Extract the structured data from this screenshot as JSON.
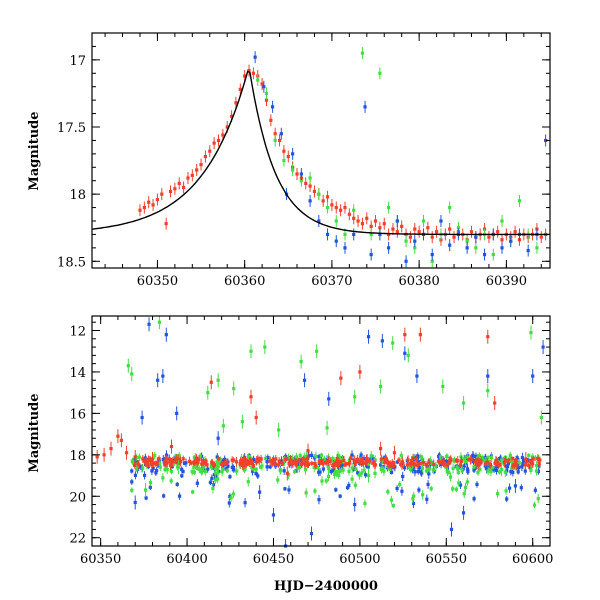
{
  "colors": {
    "red": "#f0402c",
    "green": "#44dd44",
    "blue": "#2255dd",
    "model": "#000000"
  },
  "chart_data": [
    {
      "type": "scatter",
      "title": "",
      "xlabel": "",
      "ylabel": "Magnitude",
      "xlim": [
        60342.5,
        60395
      ],
      "ylim": [
        18.55,
        16.8
      ],
      "y_inverted": true,
      "xticks": [
        60350,
        60360,
        60370,
        60380,
        60390
      ],
      "yticks": [
        17,
        17.5,
        18,
        18.5
      ],
      "xtick_labels": [
        "60350",
        "60360",
        "60370",
        "60380",
        "60390"
      ],
      "ytick_labels": [
        "17",
        "17.5",
        "18",
        "18.5"
      ],
      "model_curve": {
        "peak_x": 60360.5,
        "peak_y": 17.05,
        "baseline": 18.3,
        "rise_tau": 5.2,
        "decay_tau": 3.0
      },
      "series": [
        {
          "color": "red",
          "points": [
            [
              60348,
              18.12
            ],
            [
              60348.5,
              18.1
            ],
            [
              60349,
              18.06
            ],
            [
              60349.5,
              18.08
            ],
            [
              60350,
              18.04
            ],
            [
              60350.5,
              18.0
            ],
            [
              60351,
              18.22
            ],
            [
              60351.5,
              17.98
            ],
            [
              60352,
              17.96
            ],
            [
              60352.5,
              17.92
            ],
            [
              60353,
              17.95
            ],
            [
              60353.5,
              17.88
            ],
            [
              60354,
              17.86
            ],
            [
              60354.5,
              17.82
            ],
            [
              60355,
              17.78
            ],
            [
              60355.5,
              17.72
            ],
            [
              60356,
              17.68
            ],
            [
              60356.5,
              17.62
            ],
            [
              60357,
              17.6
            ],
            [
              60357.5,
              17.56
            ],
            [
              60358,
              17.5
            ],
            [
              60358.5,
              17.42
            ],
            [
              60359,
              17.32
            ],
            [
              60359.5,
              17.22
            ],
            [
              60360,
              17.12
            ],
            [
              60360.5,
              17.08
            ],
            [
              60361,
              17.1
            ],
            [
              60361.5,
              17.12
            ],
            [
              60362,
              17.18
            ],
            [
              60362.5,
              17.3
            ],
            [
              60363,
              17.45
            ],
            [
              60363.5,
              17.55
            ],
            [
              60364,
              17.6
            ],
            [
              60364.5,
              17.68
            ],
            [
              60365,
              17.72
            ],
            [
              60365.5,
              17.8
            ],
            [
              60366,
              17.85
            ],
            [
              60366.5,
              17.88
            ],
            [
              60367,
              17.92
            ],
            [
              60367.5,
              17.94
            ],
            [
              60368,
              17.98
            ],
            [
              60368.5,
              18.0
            ],
            [
              60369,
              18.05
            ],
            [
              60369.5,
              18.02
            ],
            [
              60370,
              18.08
            ],
            [
              60370.5,
              18.1
            ],
            [
              60371,
              18.12
            ],
            [
              60371.5,
              18.1
            ],
            [
              60372,
              18.15
            ],
            [
              60372.5,
              18.18
            ],
            [
              60373,
              18.2
            ],
            [
              60373.5,
              18.22
            ],
            [
              60374,
              18.18
            ],
            [
              60374.5,
              18.24
            ],
            [
              60375,
              18.2
            ],
            [
              60375.5,
              18.25
            ],
            [
              60376,
              18.22
            ],
            [
              60376.5,
              18.3
            ],
            [
              60377,
              18.26
            ],
            [
              60377.5,
              18.28
            ],
            [
              60378,
              18.24
            ],
            [
              60378.5,
              18.3
            ],
            [
              60379,
              18.32
            ],
            [
              60379.5,
              18.26
            ],
            [
              60380,
              18.28
            ],
            [
              60380.5,
              18.3
            ],
            [
              60381,
              18.25
            ],
            [
              60381.5,
              18.32
            ],
            [
              60382,
              18.28
            ],
            [
              60382.5,
              18.34
            ],
            [
              60383,
              18.3
            ],
            [
              60383.5,
              18.26
            ],
            [
              60384,
              18.32
            ],
            [
              60384.5,
              18.28
            ],
            [
              60385,
              18.3
            ],
            [
              60385.5,
              18.34
            ],
            [
              60386,
              18.28
            ],
            [
              60386.5,
              18.32
            ],
            [
              60387,
              18.3
            ],
            [
              60387.5,
              18.26
            ],
            [
              60388,
              18.32
            ],
            [
              60388.5,
              18.3
            ],
            [
              60389,
              18.28
            ],
            [
              60389.5,
              18.34
            ],
            [
              60390,
              18.3
            ],
            [
              60390.5,
              18.32
            ],
            [
              60391,
              18.28
            ],
            [
              60391.5,
              18.34
            ],
            [
              60392,
              18.3
            ],
            [
              60392.5,
              18.32
            ],
            [
              60393,
              18.3
            ],
            [
              60393.5,
              18.26
            ],
            [
              60394,
              18.32
            ],
            [
              60394.5,
              18.3
            ]
          ]
        },
        {
          "color": "green",
          "points": [
            [
              60361.5,
              17.15
            ],
            [
              60362.5,
              17.25
            ],
            [
              60363.5,
              17.6
            ],
            [
              60364.5,
              17.75
            ],
            [
              60365.5,
              17.82
            ],
            [
              60366.5,
              17.9
            ],
            [
              60367.5,
              17.88
            ],
            [
              60368.5,
              18.0
            ],
            [
              60369.5,
              18.1
            ],
            [
              60370.5,
              18.2
            ],
            [
              60371.5,
              18.3
            ],
            [
              60372.5,
              18.12
            ],
            [
              60373.5,
              16.95
            ],
            [
              60374.5,
              18.3
            ],
            [
              60375.5,
              17.1
            ],
            [
              60376.5,
              18.1
            ],
            [
              60377.5,
              18.2
            ],
            [
              60378.5,
              18.35
            ],
            [
              60379.5,
              18.4
            ],
            [
              60380.5,
              18.2
            ],
            [
              60381.5,
              18.5
            ],
            [
              60382.5,
              18.3
            ],
            [
              60383.5,
              18.1
            ],
            [
              60384.5,
              18.25
            ],
            [
              60385.5,
              18.35
            ],
            [
              60386.5,
              18.4
            ],
            [
              60387.5,
              18.3
            ],
            [
              60388.5,
              18.45
            ],
            [
              60389.5,
              18.2
            ],
            [
              60390.5,
              18.35
            ],
            [
              60391.5,
              18.05
            ],
            [
              60392.5,
              18.3
            ],
            [
              60393.5,
              18.4
            ]
          ]
        },
        {
          "color": "blue",
          "points": [
            [
              60361.2,
              16.98
            ],
            [
              60362.2,
              17.2
            ],
            [
              60363.2,
              17.35
            ],
            [
              60364.2,
              17.55
            ],
            [
              60364.8,
              18.0
            ],
            [
              60365.5,
              17.7
            ],
            [
              60366.5,
              17.85
            ],
            [
              60367.5,
              18.05
            ],
            [
              60368.5,
              18.2
            ],
            [
              60369.5,
              18.3
            ],
            [
              60370.5,
              18.35
            ],
            [
              60371.5,
              18.4
            ],
            [
              60372.5,
              18.3
            ],
            [
              60373.8,
              17.35
            ],
            [
              60374.5,
              18.45
            ],
            [
              60375.5,
              18.3
            ],
            [
              60376.5,
              18.4
            ],
            [
              60377.5,
              18.2
            ],
            [
              60378.5,
              18.5
            ],
            [
              60379.5,
              18.35
            ],
            [
              60380.5,
              18.3
            ],
            [
              60381.5,
              18.45
            ],
            [
              60382.5,
              18.2
            ],
            [
              60383.5,
              18.38
            ],
            [
              60384.5,
              18.3
            ],
            [
              60385.5,
              18.4
            ],
            [
              60386.5,
              18.32
            ],
            [
              60387.5,
              18.45
            ],
            [
              60388.5,
              18.3
            ],
            [
              60389.5,
              18.4
            ],
            [
              60390.5,
              18.35
            ],
            [
              60391.5,
              18.3
            ],
            [
              60392.5,
              18.42
            ],
            [
              60393.5,
              18.3
            ],
            [
              60394.5,
              17.6
            ]
          ]
        }
      ]
    },
    {
      "type": "scatter",
      "title": "",
      "xlabel": "HJD−2400000",
      "ylabel": "Magnitude",
      "xlim": [
        60345,
        60610
      ],
      "ylim": [
        22.4,
        11.3
      ],
      "y_inverted": true,
      "xticks": [
        60350,
        60400,
        60450,
        60500,
        60550,
        60600
      ],
      "yticks": [
        12,
        14,
        16,
        18,
        20,
        22
      ],
      "xtick_labels": [
        "60350",
        "60400",
        "60450",
        "60500",
        "60550",
        "60600"
      ],
      "ytick_labels": [
        "12",
        "14",
        "16",
        "18",
        "20",
        "22"
      ],
      "baseline_band": {
        "x_start": 60368,
        "x_end": 60605,
        "y": 18.3,
        "spread": 0.35
      },
      "series": [
        {
          "color": "red",
          "points": [
            [
              60348,
              18.1
            ],
            [
              60352,
              18.0
            ],
            [
              60356,
              17.7
            ],
            [
              60360,
              17.1
            ],
            [
              60362,
              17.3
            ],
            [
              60365,
              17.9
            ],
            [
              60370,
              18.1
            ],
            [
              60380,
              18.2
            ],
            [
              60391,
              17.6
            ],
            [
              60414,
              14.5
            ],
            [
              60437,
              15.2
            ],
            [
              60440,
              16.2
            ],
            [
              60458,
              18.9
            ],
            [
              60470,
              17.8
            ],
            [
              60489,
              14.3
            ],
            [
              60500,
              14.0
            ],
            [
              60512,
              17.7
            ],
            [
              60520,
              17.9
            ],
            [
              60526,
              12.2
            ],
            [
              60535,
              12.2
            ],
            [
              60574,
              12.3
            ],
            [
              60578,
              15.5
            ],
            [
              60596,
              18.2
            ]
          ]
        },
        {
          "color": "green",
          "points": [
            [
              60366,
              13.7
            ],
            [
              60368,
              14.1
            ],
            [
              60376,
              19.7
            ],
            [
              60384,
              11.6
            ],
            [
              60395,
              18.6
            ],
            [
              60412,
              15.0
            ],
            [
              60418,
              14.4
            ],
            [
              60421,
              16.6
            ],
            [
              60427,
              14.8
            ],
            [
              60432,
              16.4
            ],
            [
              60437,
              13.0
            ],
            [
              60445,
              12.8
            ],
            [
              60453,
              16.8
            ],
            [
              60466,
              13.5
            ],
            [
              60475,
              13.0
            ],
            [
              60481,
              16.7
            ],
            [
              60497,
              15.2
            ],
            [
              60505,
              19.0
            ],
            [
              60512,
              14.7
            ],
            [
              60519,
              12.6
            ],
            [
              60528,
              13.2
            ],
            [
              60548,
              14.7
            ],
            [
              60560,
              15.5
            ],
            [
              60574,
              14.9
            ],
            [
              60582,
              18.7
            ],
            [
              60599,
              12.1
            ],
            [
              60605,
              16.2
            ]
          ]
        },
        {
          "color": "blue",
          "points": [
            [
              60370,
              20.3
            ],
            [
              60374,
              16.2
            ],
            [
              60378,
              11.7
            ],
            [
              60383,
              14.4
            ],
            [
              60386,
              14.2
            ],
            [
              60388,
              12.2
            ],
            [
              60394,
              16.0
            ],
            [
              60418,
              17.2
            ],
            [
              60442,
              19.8
            ],
            [
              60450,
              20.9
            ],
            [
              60457,
              22.4
            ],
            [
              60468,
              14.4
            ],
            [
              60472,
              21.8
            ],
            [
              60482,
              15.3
            ],
            [
              60497,
              20.4
            ],
            [
              60505,
              12.3
            ],
            [
              60513,
              12.5
            ],
            [
              60526,
              13.1
            ],
            [
              60533,
              14.2
            ],
            [
              60553,
              21.6
            ],
            [
              60560,
              20.8
            ],
            [
              60574,
              14.2
            ],
            [
              60590,
              19.5
            ],
            [
              60600,
              14.2
            ],
            [
              60606,
              12.8
            ]
          ]
        }
      ]
    }
  ]
}
